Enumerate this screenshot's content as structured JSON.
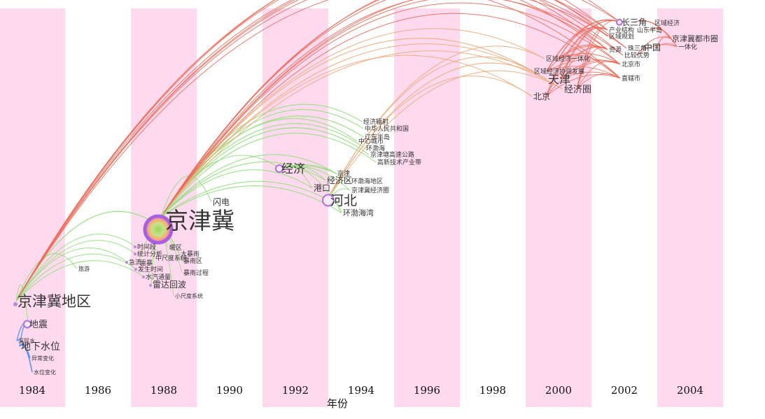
{
  "colors": {
    "stripe": "#ffd9ee",
    "year_text": "#111111",
    "node_fill": "#b98ce0",
    "early": "#5a8df0",
    "green": "#8fe07a",
    "orange": "#f0a878",
    "red": "#ee6a5a"
  },
  "timeline": {
    "years": [
      "1984",
      "1986",
      "1988",
      "1990",
      "1992",
      "1994",
      "1996",
      "1998",
      "2000",
      "2002",
      "2004"
    ],
    "x_label": "年份"
  },
  "nodes": [
    {
      "id": "jingjinji",
      "label": "京津冀",
      "size": "xl",
      "year": 1988.0,
      "ring": true
    },
    {
      "id": "jjj_diqu",
      "label": "京津冀地区",
      "size": "l",
      "year": 1984.0,
      "ring": false
    },
    {
      "id": "dizhen",
      "label": "地震",
      "size": "m",
      "year": 1984.0,
      "ring": true
    },
    {
      "id": "xiashui",
      "label": "地下水位",
      "size": "m",
      "year": 1984.0,
      "ring": false
    },
    {
      "id": "shenshui",
      "label": "深层水",
      "size": "s",
      "year": 1984.0,
      "ring": false
    },
    {
      "id": "yichang",
      "label": "异常变化",
      "size": "s",
      "year": 1984.0,
      "ring": false
    },
    {
      "id": "shuiwei",
      "label": "水位变化",
      "size": "s",
      "year": 1984.0,
      "ring": false
    },
    {
      "id": "lvyou",
      "label": "旅游",
      "size": "s",
      "year": 1986.0,
      "ring": false
    },
    {
      "id": "shandian",
      "label": "闪电",
      "size": "m",
      "year": 1989.0,
      "ring": false
    },
    {
      "id": "shijianduan",
      "label": "时间段",
      "size": "s",
      "year": 1988.0,
      "ring": false
    },
    {
      "id": "nuanqu",
      "label": "暖区",
      "size": "s",
      "year": 1988.0,
      "ring": false
    },
    {
      "id": "dabaoyu",
      "label": "大暴雨",
      "size": "s",
      "year": 1988.0,
      "ring": false
    },
    {
      "id": "tongji",
      "label": "统计分析",
      "size": "s",
      "year": 1988.0,
      "ring": false
    },
    {
      "id": "zhongchidu",
      "label": "中尺度系统",
      "size": "s",
      "year": 1988.0,
      "ring": false
    },
    {
      "id": "baoyuqu",
      "label": "暴雨区",
      "size": "s",
      "year": 1988.0,
      "ring": false
    },
    {
      "id": "qiliu",
      "label": "急流",
      "size": "s",
      "year": 1988.0,
      "ring": false
    },
    {
      "id": "leiyu",
      "label": "雷暴",
      "size": "s",
      "year": 1988.0,
      "ring": false
    },
    {
      "id": "fashengshijian",
      "label": "发生时间",
      "size": "s",
      "year": 1988.0,
      "ring": false
    },
    {
      "id": "baoyuguocheng",
      "label": "暴雨过程",
      "size": "s",
      "year": 1988.0,
      "ring": false
    },
    {
      "id": "shuiqi",
      "label": "水汽通量",
      "size": "s",
      "year": 1988.0,
      "ring": false
    },
    {
      "id": "leida",
      "label": "雷达回波",
      "size": "m",
      "year": 1988.0,
      "ring": false
    },
    {
      "id": "xiaochidu",
      "label": "小尺度系统",
      "size": "s",
      "year": 1989.0,
      "ring": false
    },
    {
      "id": "jingji",
      "label": "经济",
      "size": "l",
      "year": 1992.0,
      "ring": true
    },
    {
      "id": "hebei",
      "label": "河北",
      "size": "l",
      "year": 1993.0,
      "ring": true
    },
    {
      "id": "gangkou",
      "label": "港口",
      "size": "m",
      "year": 1992.0,
      "ring": false
    },
    {
      "id": "jingjiqu",
      "label": "经济区",
      "size": "m",
      "year": 1993.0,
      "ring": false
    },
    {
      "id": "jingjin",
      "label": "京津",
      "size": "s",
      "year": 1993.0,
      "ring": false
    },
    {
      "id": "huanbohai_diqu",
      "label": "环渤海地区",
      "size": "s",
      "year": 1993.0,
      "ring": false
    },
    {
      "id": "jjj_jingjiquan",
      "label": "京津冀经济圈",
      "size": "s",
      "year": 1993.0,
      "ring": false
    },
    {
      "id": "huanbohaiwan",
      "label": "环渤海湾",
      "size": "m",
      "year": 1993.0,
      "ring": false
    },
    {
      "id": "jingjifushe",
      "label": "经济辐射",
      "size": "s",
      "year": 1994.0,
      "ring": false
    },
    {
      "id": "zhonghua",
      "label": "中华人民共和国",
      "size": "s",
      "year": 1994.0,
      "ring": false
    },
    {
      "id": "liaodong",
      "label": "辽东半岛",
      "size": "s",
      "year": 1994.0,
      "ring": false
    },
    {
      "id": "zhongxin",
      "label": "中心城市",
      "size": "s",
      "year": 1994.0,
      "ring": false
    },
    {
      "id": "huanbohai",
      "label": "环渤海",
      "size": "s",
      "year": 1994.0,
      "ring": false
    },
    {
      "id": "gaosu",
      "label": "京津塘高速公路",
      "size": "s",
      "year": 1994.0,
      "ring": false
    },
    {
      "id": "gaoxin",
      "label": "高新技术产业带",
      "size": "s",
      "year": 1994.0,
      "ring": false
    },
    {
      "id": "quyujingji_a",
      "label": "区域经济一体化",
      "size": "s",
      "year": 2000.0,
      "ring": false
    },
    {
      "id": "xietiao",
      "label": "区域经济协调发展",
      "size": "s",
      "year": 2000.0,
      "ring": false
    },
    {
      "id": "tianjin",
      "label": "天津",
      "size": "l",
      "year": 2000.0,
      "ring": false
    },
    {
      "id": "jingjiquan",
      "label": "经济圈",
      "size": "m",
      "year": 2000.0,
      "ring": false
    },
    {
      "id": "beijing",
      "label": "北京",
      "size": "m",
      "year": 2000.0,
      "ring": false
    },
    {
      "id": "changsanjiao",
      "label": "长三角",
      "size": "m",
      "year": 2002.0,
      "ring": true
    },
    {
      "id": "chanye",
      "label": "产业结构",
      "size": "s",
      "year": 2002.0,
      "ring": false
    },
    {
      "id": "guihua",
      "label": "区域规划",
      "size": "s",
      "year": 2002.0,
      "ring": false
    },
    {
      "id": "shandong",
      "label": "山东半岛",
      "size": "s",
      "year": 2002.0,
      "ring": false
    },
    {
      "id": "quyujingji_b",
      "label": "区域经济",
      "size": "s",
      "year": 2002.0,
      "ring": false
    },
    {
      "id": "ziyuan",
      "label": "资源",
      "size": "s",
      "year": 2002.0,
      "ring": false
    },
    {
      "id": "zhusanjiao",
      "label": "珠三角",
      "size": "s",
      "year": 2002.0,
      "ring": false
    },
    {
      "id": "zhongguo",
      "label": "中国",
      "size": "s",
      "year": 2002.0,
      "ring": false
    },
    {
      "id": "bijiao",
      "label": "比较优势",
      "size": "s",
      "year": 2002.0,
      "ring": false
    },
    {
      "id": "beijingshi",
      "label": "北京市",
      "size": "s",
      "year": 2002.0,
      "ring": false
    },
    {
      "id": "zhixiashi",
      "label": "直辖市",
      "size": "s",
      "year": 2002.0,
      "ring": false
    },
    {
      "id": "dushiquan",
      "label": "京津冀都市圈",
      "size": "m",
      "year": 2004.0,
      "ring": false
    },
    {
      "id": "yitihua",
      "label": "一体化",
      "size": "s",
      "year": 2004.0,
      "ring": false
    }
  ]
}
